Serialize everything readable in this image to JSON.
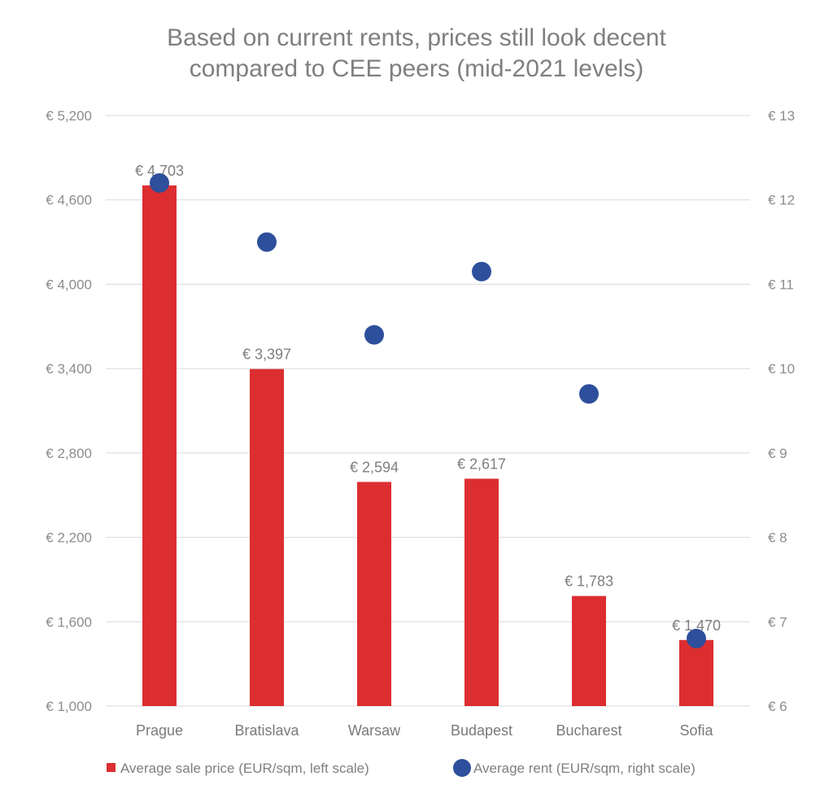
{
  "chart_data": {
    "type": "bar",
    "title": "Based on current rents, prices still look decent\ncompared to CEE peers (mid-2021 levels)",
    "categories": [
      "Prague",
      "Bratislava",
      "Warsaw",
      "Budapest",
      "Bucharest",
      "Sofia"
    ],
    "series": [
      {
        "name": "Average sale price (EUR/sqm, left scale)",
        "type": "bar",
        "axis": "left",
        "color": "#dc2e31",
        "values": [
          4703,
          3397,
          2594,
          2617,
          1783,
          1470
        ],
        "data_labels": [
          "€ 4,703",
          "€ 3,397",
          "€ 2,594",
          "€ 2,617",
          "€ 1,783",
          "€ 1,470"
        ]
      },
      {
        "name": "Average rent (EUR/sqm, right scale)",
        "type": "scatter",
        "axis": "right",
        "color": "#2e4f9b",
        "values": [
          12.2,
          11.5,
          10.4,
          11.15,
          9.7,
          6.8
        ]
      }
    ],
    "y_left": {
      "range": [
        1000,
        5200
      ],
      "ticks": [
        1000,
        1600,
        2200,
        2800,
        3400,
        4000,
        4600,
        5200
      ],
      "tick_labels": [
        "€ 1,000",
        "€ 1,600",
        "€ 2,200",
        "€ 2,800",
        "€ 3,400",
        "€ 4,000",
        "€ 4,600",
        "€ 5,200"
      ]
    },
    "y_right": {
      "range": [
        6,
        13
      ],
      "ticks": [
        6,
        7,
        8,
        9,
        10,
        11,
        12,
        13
      ],
      "tick_labels": [
        "€ 6",
        "€ 7",
        "€ 8",
        "€ 9",
        "€ 10",
        "€ 11",
        "€ 12",
        "€ 13"
      ]
    },
    "grid": true,
    "legend_position": "bottom"
  }
}
